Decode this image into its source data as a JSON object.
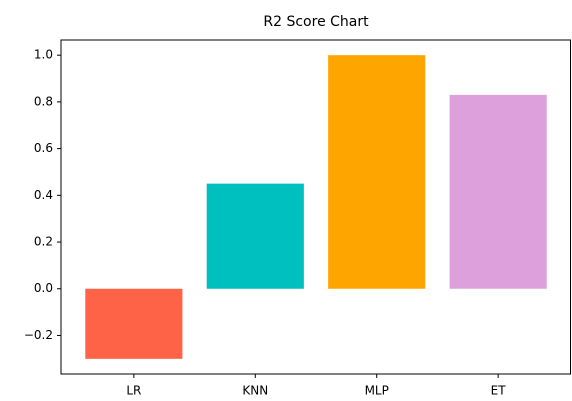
{
  "chart_data": {
    "type": "bar",
    "title": "R2 Score Chart",
    "categories": [
      "LR",
      "KNN",
      "MLP",
      "ET"
    ],
    "values": [
      -0.3,
      0.45,
      1.0,
      0.83
    ],
    "colors": [
      "#ff6347",
      "#00bfbf",
      "#ffa500",
      "#dda0dd"
    ],
    "ylim": [
      -0.365,
      1.065
    ],
    "yticks": [
      {
        "value": -0.2,
        "label": "−0.2"
      },
      {
        "value": 0,
        "label": "0.0"
      },
      0.2,
      0.4,
      0.6,
      0.8,
      {
        "value": 1,
        "label": "1.0"
      }
    ],
    "grid": false
  }
}
